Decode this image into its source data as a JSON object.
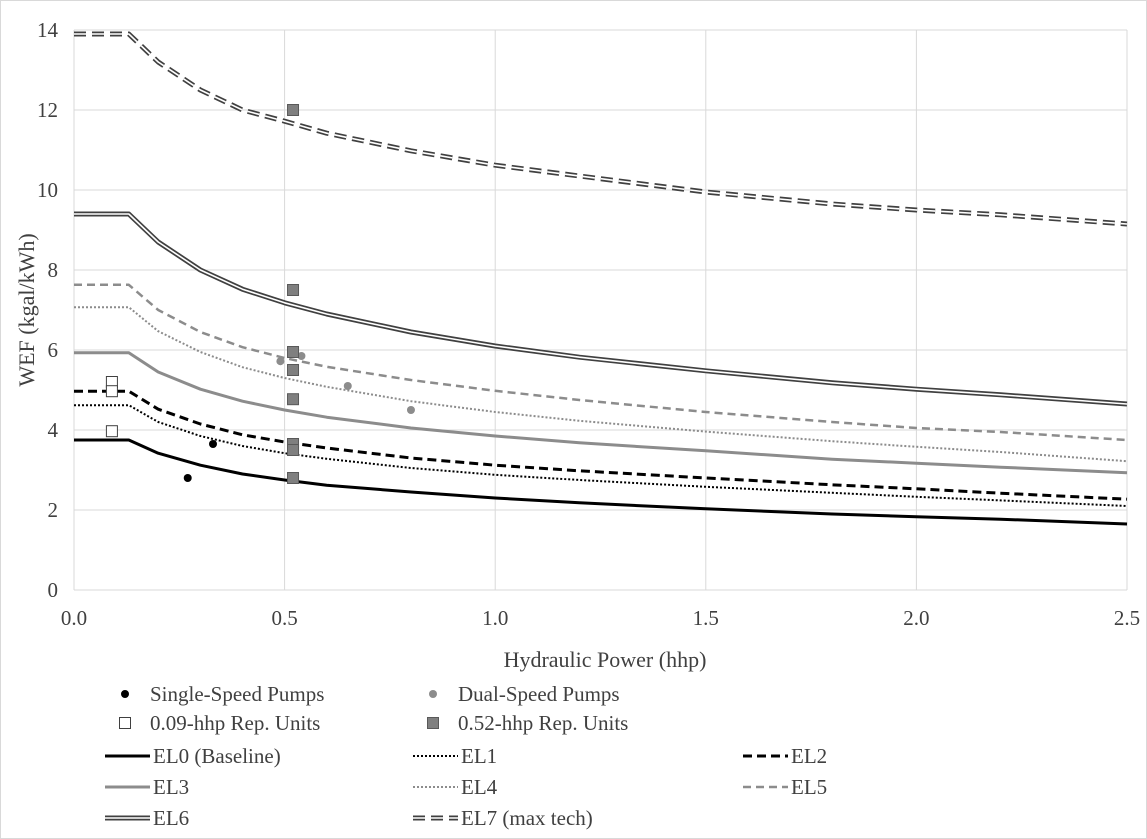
{
  "chart_data": {
    "type": "line",
    "xlabel": "Hydraulic Power (hhp)",
    "ylabel": "WEF (kgal/kWh)",
    "xlim": [
      0,
      2.5
    ],
    "ylim": [
      0,
      14
    ],
    "x_ticks": [
      "0.0",
      "0.5",
      "1.0",
      "1.5",
      "2.0",
      "2.5"
    ],
    "y_ticks": [
      "0",
      "2",
      "4",
      "6",
      "8",
      "10",
      "12",
      "14"
    ],
    "grid": true,
    "legend_position": "bottom",
    "series": [
      {
        "name": "EL0 (Baseline)",
        "style": "solid-black",
        "color": "#000000",
        "x": [
          0,
          0.13,
          0.2,
          0.3,
          0.4,
          0.5,
          0.6,
          0.8,
          1.0,
          1.2,
          1.5,
          1.8,
          2.0,
          2.2,
          2.5
        ],
        "y": [
          3.75,
          3.75,
          3.42,
          3.12,
          2.9,
          2.75,
          2.62,
          2.45,
          2.3,
          2.18,
          2.03,
          1.9,
          1.83,
          1.77,
          1.65
        ]
      },
      {
        "name": "EL1",
        "style": "dotted-black",
        "color": "#000000",
        "x": [
          0,
          0.13,
          0.2,
          0.3,
          0.4,
          0.5,
          0.6,
          0.8,
          1.0,
          1.2,
          1.5,
          1.8,
          2.0,
          2.2,
          2.5
        ],
        "y": [
          4.62,
          4.62,
          4.2,
          3.85,
          3.6,
          3.42,
          3.28,
          3.05,
          2.88,
          2.75,
          2.58,
          2.43,
          2.33,
          2.24,
          2.1
        ]
      },
      {
        "name": "EL2",
        "style": "dashed-black",
        "color": "#000000",
        "x": [
          0,
          0.13,
          0.2,
          0.3,
          0.4,
          0.5,
          0.6,
          0.8,
          1.0,
          1.2,
          1.5,
          1.8,
          2.0,
          2.2,
          2.5
        ],
        "y": [
          4.97,
          4.97,
          4.52,
          4.15,
          3.88,
          3.7,
          3.55,
          3.3,
          3.12,
          2.98,
          2.8,
          2.63,
          2.53,
          2.42,
          2.27
        ]
      },
      {
        "name": "EL3",
        "style": "solid-gray",
        "color": "#8c8c8c",
        "x": [
          0,
          0.13,
          0.2,
          0.3,
          0.4,
          0.5,
          0.6,
          0.8,
          1.0,
          1.2,
          1.5,
          1.8,
          2.0,
          2.2,
          2.5
        ],
        "y": [
          5.93,
          5.93,
          5.45,
          5.02,
          4.72,
          4.5,
          4.32,
          4.05,
          3.85,
          3.68,
          3.48,
          3.27,
          3.17,
          3.07,
          2.93
        ]
      },
      {
        "name": "EL4",
        "style": "dotted-gray",
        "color": "#8c8c8c",
        "x": [
          0,
          0.13,
          0.2,
          0.3,
          0.4,
          0.5,
          0.6,
          0.8,
          1.0,
          1.2,
          1.5,
          1.8,
          2.0,
          2.2,
          2.5
        ],
        "y": [
          7.07,
          7.07,
          6.47,
          5.95,
          5.57,
          5.3,
          5.08,
          4.72,
          4.45,
          4.23,
          3.96,
          3.72,
          3.58,
          3.45,
          3.22
        ]
      },
      {
        "name": "EL5",
        "style": "dashed-gray",
        "color": "#8c8c8c",
        "x": [
          0,
          0.13,
          0.2,
          0.3,
          0.4,
          0.5,
          0.6,
          0.8,
          1.0,
          1.2,
          1.5,
          1.8,
          2.0,
          2.2,
          2.5
        ],
        "y": [
          7.63,
          7.63,
          7.0,
          6.45,
          6.07,
          5.8,
          5.58,
          5.25,
          4.98,
          4.75,
          4.45,
          4.2,
          4.05,
          3.95,
          3.75
        ]
      },
      {
        "name": "EL6",
        "style": "double-line",
        "color": "#404040",
        "x": [
          0,
          0.13,
          0.2,
          0.3,
          0.4,
          0.5,
          0.6,
          0.8,
          1.0,
          1.2,
          1.5,
          1.8,
          2.0,
          2.2,
          2.5
        ],
        "y": [
          9.4,
          9.4,
          8.7,
          8.0,
          7.52,
          7.18,
          6.9,
          6.45,
          6.1,
          5.82,
          5.48,
          5.18,
          5.02,
          4.88,
          4.65
        ]
      },
      {
        "name": "EL7 (max tech)",
        "style": "double-dashed",
        "color": "#404040",
        "x": [
          0,
          0.13,
          0.2,
          0.3,
          0.4,
          0.5,
          0.6,
          0.8,
          1.0,
          1.2,
          1.5,
          1.8,
          2.0,
          2.2,
          2.5
        ],
        "y": [
          13.9,
          13.9,
          13.2,
          12.5,
          12.0,
          11.72,
          11.42,
          10.98,
          10.62,
          10.35,
          9.95,
          9.65,
          9.5,
          9.38,
          9.15
        ]
      }
    ],
    "scatter": [
      {
        "name": "Single-Speed Pumps",
        "marker": "circle",
        "fill": "#000000",
        "points": [
          [
            0.27,
            2.8
          ],
          [
            0.33,
            3.65
          ]
        ]
      },
      {
        "name": "Dual-Speed Pumps",
        "marker": "circle",
        "fill": "#8c8c8c",
        "points": [
          [
            0.49,
            5.72
          ],
          [
            0.54,
            5.85
          ],
          [
            0.65,
            5.1
          ],
          [
            0.8,
            4.5
          ]
        ]
      },
      {
        "name": "0.09-hhp Rep. Units",
        "marker": "square",
        "fill": "#ffffff",
        "points": [
          [
            0.09,
            5.2
          ],
          [
            0.09,
            4.97
          ],
          [
            0.09,
            3.97
          ]
        ]
      },
      {
        "name": "0.52-hhp Rep. Units",
        "marker": "square",
        "fill": "#7f7f7f",
        "points": [
          [
            0.52,
            12.0
          ],
          [
            0.52,
            7.5
          ],
          [
            0.52,
            5.95
          ],
          [
            0.52,
            5.5
          ],
          [
            0.52,
            4.77
          ],
          [
            0.52,
            3.65
          ],
          [
            0.52,
            3.5
          ],
          [
            0.52,
            2.8
          ]
        ]
      }
    ]
  }
}
